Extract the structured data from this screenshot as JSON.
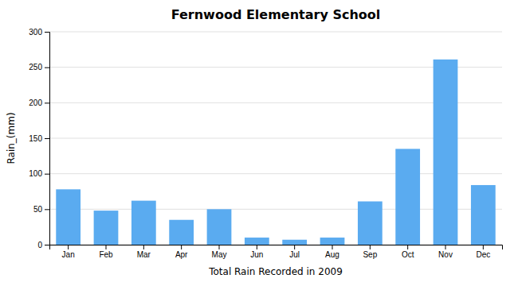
{
  "chart_data": {
    "type": "bar",
    "title": "Fernwood Elementary School",
    "xlabel": "Total Rain Recorded in 2009",
    "ylabel": "Rain_(mm)",
    "categories": [
      "Jan",
      "Feb",
      "Mar",
      "Apr",
      "May",
      "Jun",
      "Jul",
      "Aug",
      "Sep",
      "Oct",
      "Nov",
      "Dec"
    ],
    "values": [
      78,
      48,
      62,
      35,
      50,
      10,
      7,
      10,
      61,
      135,
      261,
      84
    ],
    "color": "#5aabf0",
    "ylim": [
      0,
      300
    ],
    "yticks": [
      0,
      50,
      100,
      150,
      200,
      250,
      300
    ],
    "grid": true
  }
}
